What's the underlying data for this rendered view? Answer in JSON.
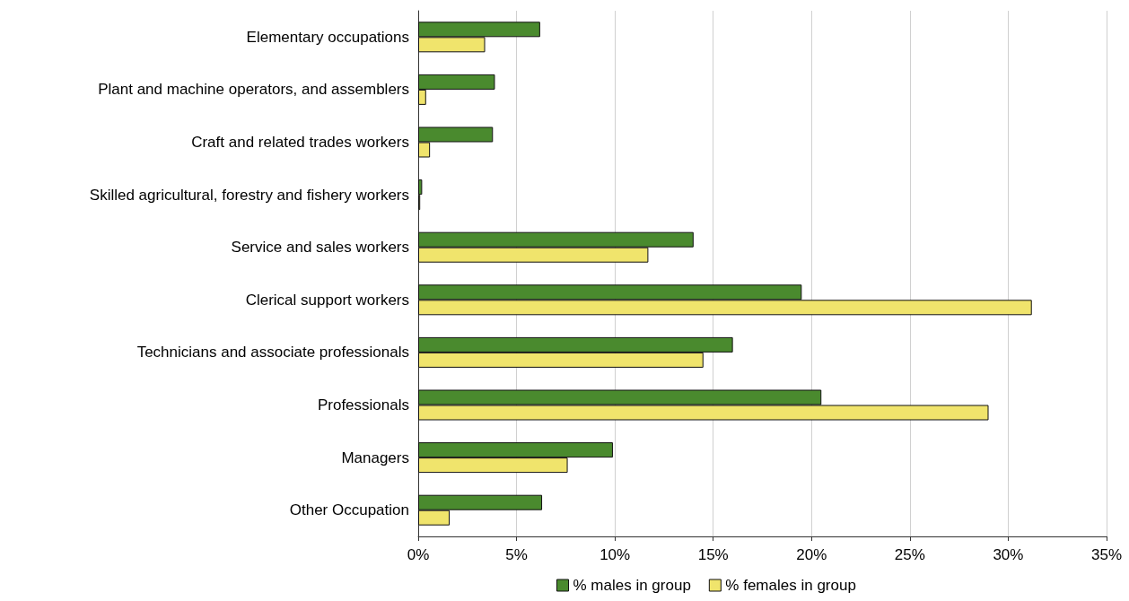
{
  "chart_data": {
    "type": "bar",
    "orientation": "horizontal",
    "categories": [
      "Elementary occupations",
      "Plant and machine operators, and assemblers",
      "Craft and related trades workers",
      "Skilled agricultural, forestry and fishery workers",
      "Service and sales workers",
      "Clerical support workers",
      "Technicians and associate professionals",
      "Professionals",
      "Managers",
      "Other Occupation"
    ],
    "series": [
      {
        "name": "% males in group",
        "color": "#4a8a2e",
        "values": [
          6.2,
          3.9,
          3.8,
          0.2,
          14.0,
          19.5,
          16.0,
          20.5,
          9.9,
          6.3
        ]
      },
      {
        "name": "% females in group",
        "color": "#f0e46c",
        "values": [
          3.4,
          0.4,
          0.6,
          0.1,
          11.7,
          31.2,
          14.5,
          29.0,
          7.6,
          1.6
        ]
      }
    ],
    "xlim": [
      0,
      35
    ],
    "xticks": [
      {
        "value": 0,
        "label": "0%"
      },
      {
        "value": 5,
        "label": "5%"
      },
      {
        "value": 10,
        "label": "10%"
      },
      {
        "value": 15,
        "label": "15%"
      },
      {
        "value": 20,
        "label": "20%"
      },
      {
        "value": 25,
        "label": "25%"
      },
      {
        "value": 30,
        "label": "30%"
      },
      {
        "value": 35,
        "label": "35%"
      }
    ],
    "grid": "x",
    "legend": "bottom"
  }
}
